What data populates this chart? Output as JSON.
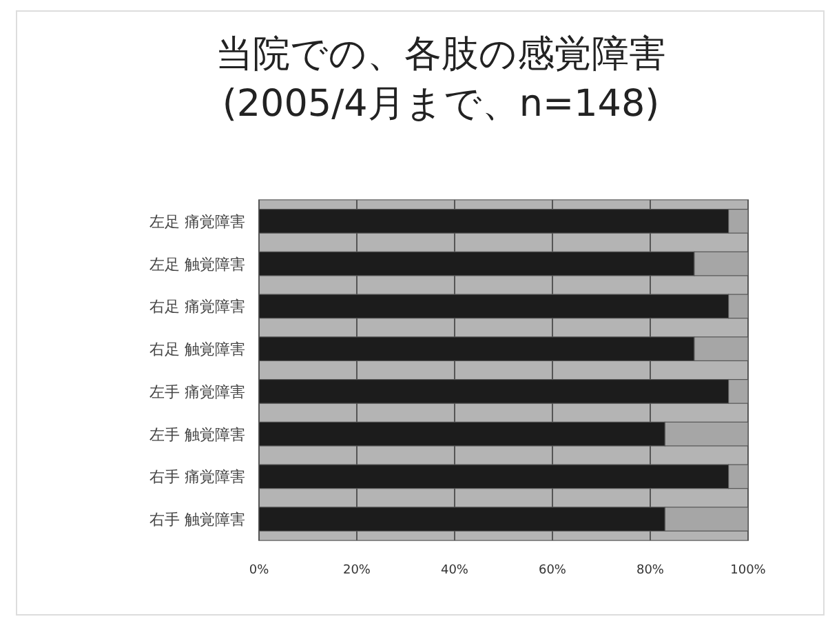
{
  "chart_data": {
    "type": "bar",
    "orientation": "horizontal",
    "stacked": true,
    "title": "当院での、各肢の感覚障害\n(2005/4月まで、n=148)",
    "categories": [
      "左足 痛覚障害",
      "左足 触覚障害",
      "右足 痛覚障害",
      "右足 触覚障害",
      "左手 痛覚障害",
      "左手 触覚障害",
      "右手 痛覚障害",
      "右手 触覚障害"
    ],
    "series": [
      {
        "color": "#1c1c1c",
        "values": [
          96,
          89,
          96,
          89,
          96,
          83,
          96,
          83
        ]
      },
      {
        "color": "#a6a6a6",
        "values": [
          4,
          11,
          4,
          11,
          4,
          17,
          4,
          17
        ]
      }
    ],
    "xlim": [
      0,
      100
    ],
    "xticks": [
      {
        "value": 0,
        "label": "0%"
      },
      {
        "value": 20,
        "label": "20%"
      },
      {
        "value": 40,
        "label": "40%"
      },
      {
        "value": 60,
        "label": "60%"
      },
      {
        "value": 80,
        "label": "80%"
      },
      {
        "value": 100,
        "label": "100%"
      }
    ],
    "grid": "x"
  }
}
